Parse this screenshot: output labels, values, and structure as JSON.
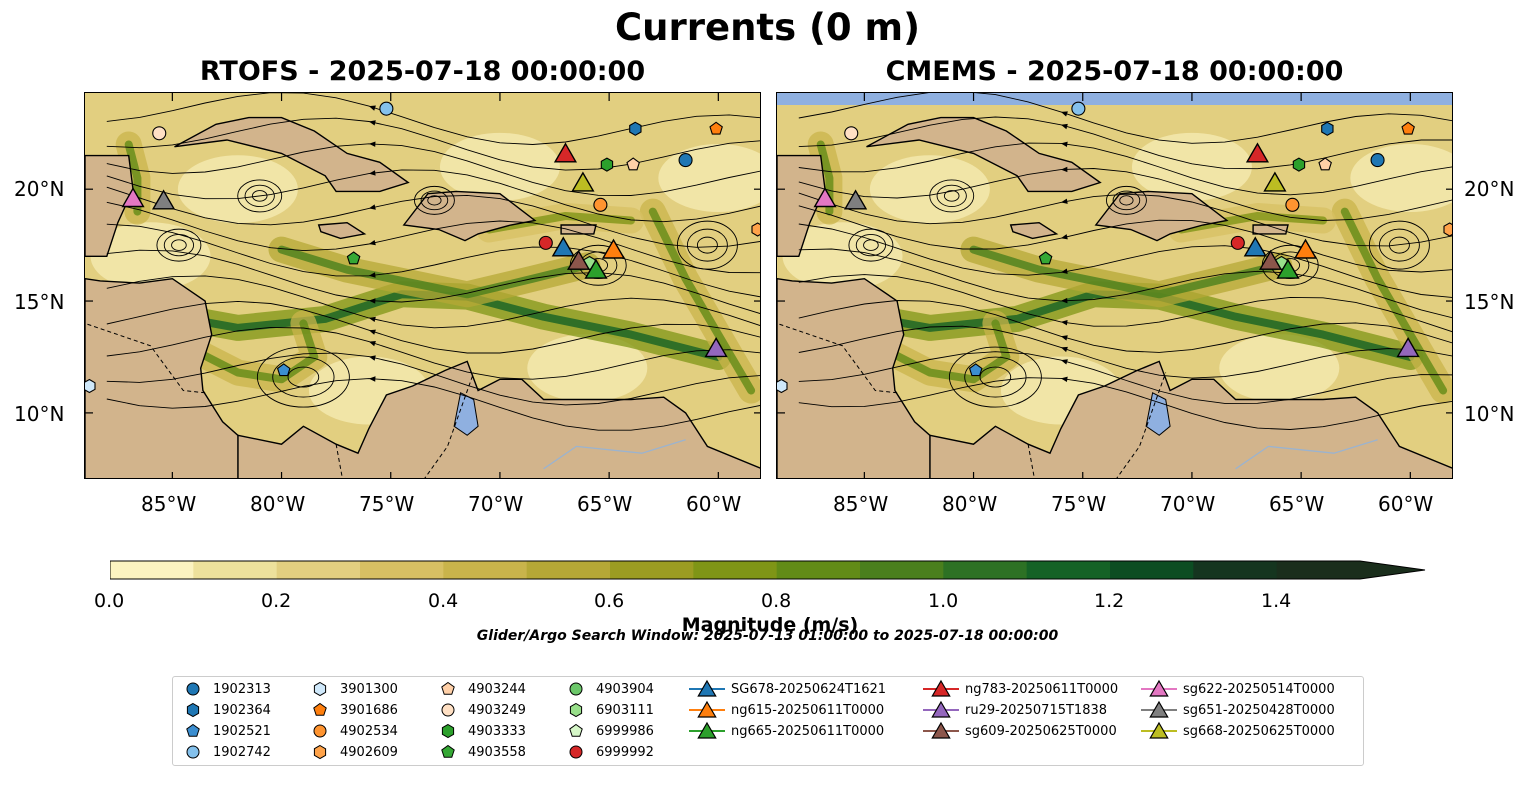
{
  "suptitle": "Currents (0 m)",
  "panels": [
    {
      "title": "RTOFS - 2025-07-18 00:00:00"
    },
    {
      "title": "CMEMS - 2025-07-18 00:00:00"
    }
  ],
  "axes": {
    "lon_ticks": [
      "85°W",
      "80°W",
      "75°W",
      "70°W",
      "65°W",
      "60°W"
    ],
    "lat_ticks": [
      "20°N",
      "15°N",
      "10°N"
    ],
    "lon_range": [
      -89,
      -58
    ],
    "lat_range": [
      7,
      24.3
    ]
  },
  "colorbar": {
    "label": "Magnitude (m/s)",
    "ticks": [
      "0.0",
      "0.2",
      "0.4",
      "0.6",
      "0.8",
      "1.0",
      "1.2",
      "1.4"
    ],
    "range": [
      0,
      1.5
    ],
    "extend": "max",
    "colors": [
      "#fbf3c1",
      "#ede19c",
      "#e2cf80",
      "#d7c063",
      "#c9b44b",
      "#b6a836",
      "#9b9c22",
      "#7f9516",
      "#628b17",
      "#4a7f1d",
      "#2d7124",
      "#156226",
      "#0c4d22",
      "#15351f",
      "#1a2e1c"
    ]
  },
  "subtitle": "Glider/Argo Search Window: 2025-07-13 01:00:00 to 2025-07-18 00:00:00",
  "colors": {
    "land": "#d2b48c",
    "water_body": "#8fb0e0",
    "ocean_low": "#e4cf7c"
  },
  "legend": [
    {
      "label": "1902313",
      "marker": "circle",
      "color": "#1f77b4"
    },
    {
      "label": "1902364",
      "marker": "hexagon",
      "color": "#1f77b4"
    },
    {
      "label": "1902521",
      "marker": "pentagon",
      "color": "#3b8ed0"
    },
    {
      "label": "1902742",
      "marker": "circle",
      "color": "#84c1ec"
    },
    {
      "label": "3901300",
      "marker": "hexagon",
      "color": "#cfe8fa"
    },
    {
      "label": "3901686",
      "marker": "pentagon",
      "color": "#ff7f0e"
    },
    {
      "label": "4902534",
      "marker": "circle",
      "color": "#ff9430"
    },
    {
      "label": "4902609",
      "marker": "hexagon",
      "color": "#ffa34a"
    },
    {
      "label": "4903244",
      "marker": "pentagon",
      "color": "#ffd0a8"
    },
    {
      "label": "4903249",
      "marker": "circle",
      "color": "#ffe0c4"
    },
    {
      "label": "4903333",
      "marker": "hexagon",
      "color": "#2ca02c"
    },
    {
      "label": "4903558",
      "marker": "pentagon",
      "color": "#35a835"
    },
    {
      "label": "4903904",
      "marker": "circle",
      "color": "#6cc86a"
    },
    {
      "label": "6903111",
      "marker": "hexagon",
      "color": "#98df8a"
    },
    {
      "label": "6999986",
      "marker": "pentagon",
      "color": "#d6f7c8"
    },
    {
      "label": "6999992",
      "marker": "circle",
      "color": "#d62728"
    },
    {
      "label": "SG678-20250624T1621",
      "marker": "triangle",
      "color": "#1f77b4"
    },
    {
      "label": "ng615-20250611T0000",
      "marker": "triangle",
      "color": "#ff7f0e"
    },
    {
      "label": "ng665-20250611T0000",
      "marker": "triangle",
      "color": "#2ca02c"
    },
    {
      "label": "ng783-20250611T0000",
      "marker": "triangle",
      "color": "#d62728"
    },
    {
      "label": "ru29-20250715T1838",
      "marker": "triangle",
      "color": "#9467bd"
    },
    {
      "label": "sg609-20250625T0000",
      "marker": "triangle",
      "color": "#8c564b"
    },
    {
      "label": "sg622-20250514T0000",
      "marker": "triangle",
      "color": "#e377c2"
    },
    {
      "label": "sg651-20250428T0000",
      "marker": "triangle",
      "color": "#7f7f7f"
    },
    {
      "label": "sg668-20250625T0000",
      "marker": "triangle",
      "color": "#bcbd22"
    }
  ],
  "floats": [
    {
      "id": "1902742",
      "lon": -75.2,
      "lat": 23.6
    },
    {
      "id": "4903249",
      "lon": -85.6,
      "lat": 22.5
    },
    {
      "id": "1902364",
      "lon": -63.8,
      "lat": 22.7
    },
    {
      "id": "3901686",
      "lon": -60.1,
      "lat": 22.7
    },
    {
      "id": "1902313",
      "lon": -61.5,
      "lat": 21.3
    },
    {
      "id": "4903333",
      "lon": -65.1,
      "lat": 21.1
    },
    {
      "id": "4903244",
      "lon": -63.9,
      "lat": 21.1
    },
    {
      "id": "4902534",
      "lon": -65.4,
      "lat": 19.3
    },
    {
      "id": "4902609",
      "lon": -58.2,
      "lat": 18.2
    },
    {
      "id": "6999992",
      "lon": -67.9,
      "lat": 17.6
    },
    {
      "id": "6903111",
      "lon": -65.9,
      "lat": 16.7
    },
    {
      "id": "4903558",
      "lon": -76.7,
      "lat": 16.9
    },
    {
      "id": "1902521",
      "lon": -79.9,
      "lat": 11.9
    },
    {
      "id": "3901300",
      "lon": -88.8,
      "lat": 11.2
    }
  ],
  "gliders": [
    {
      "id": "ng783-20250611T0000",
      "lon": -67.0,
      "lat": 21.6
    },
    {
      "id": "sg668-20250625T0000",
      "lon": -66.2,
      "lat": 20.3
    },
    {
      "id": "sg622-20250514T0000",
      "lon": -86.8,
      "lat": 19.6
    },
    {
      "id": "sg651-20250428T0000",
      "lon": -85.4,
      "lat": 19.5
    },
    {
      "id": "SG678-20250624T1621",
      "lon": -67.1,
      "lat": 17.4
    },
    {
      "id": "ng615-20250611T0000",
      "lon": -64.8,
      "lat": 17.3
    },
    {
      "id": "sg609-20250625T0000",
      "lon": -66.4,
      "lat": 16.8
    },
    {
      "id": "ng665-20250611T0000",
      "lon": -65.6,
      "lat": 16.4
    },
    {
      "id": "ru29-20250715T1838",
      "lon": -60.1,
      "lat": 12.9
    }
  ]
}
